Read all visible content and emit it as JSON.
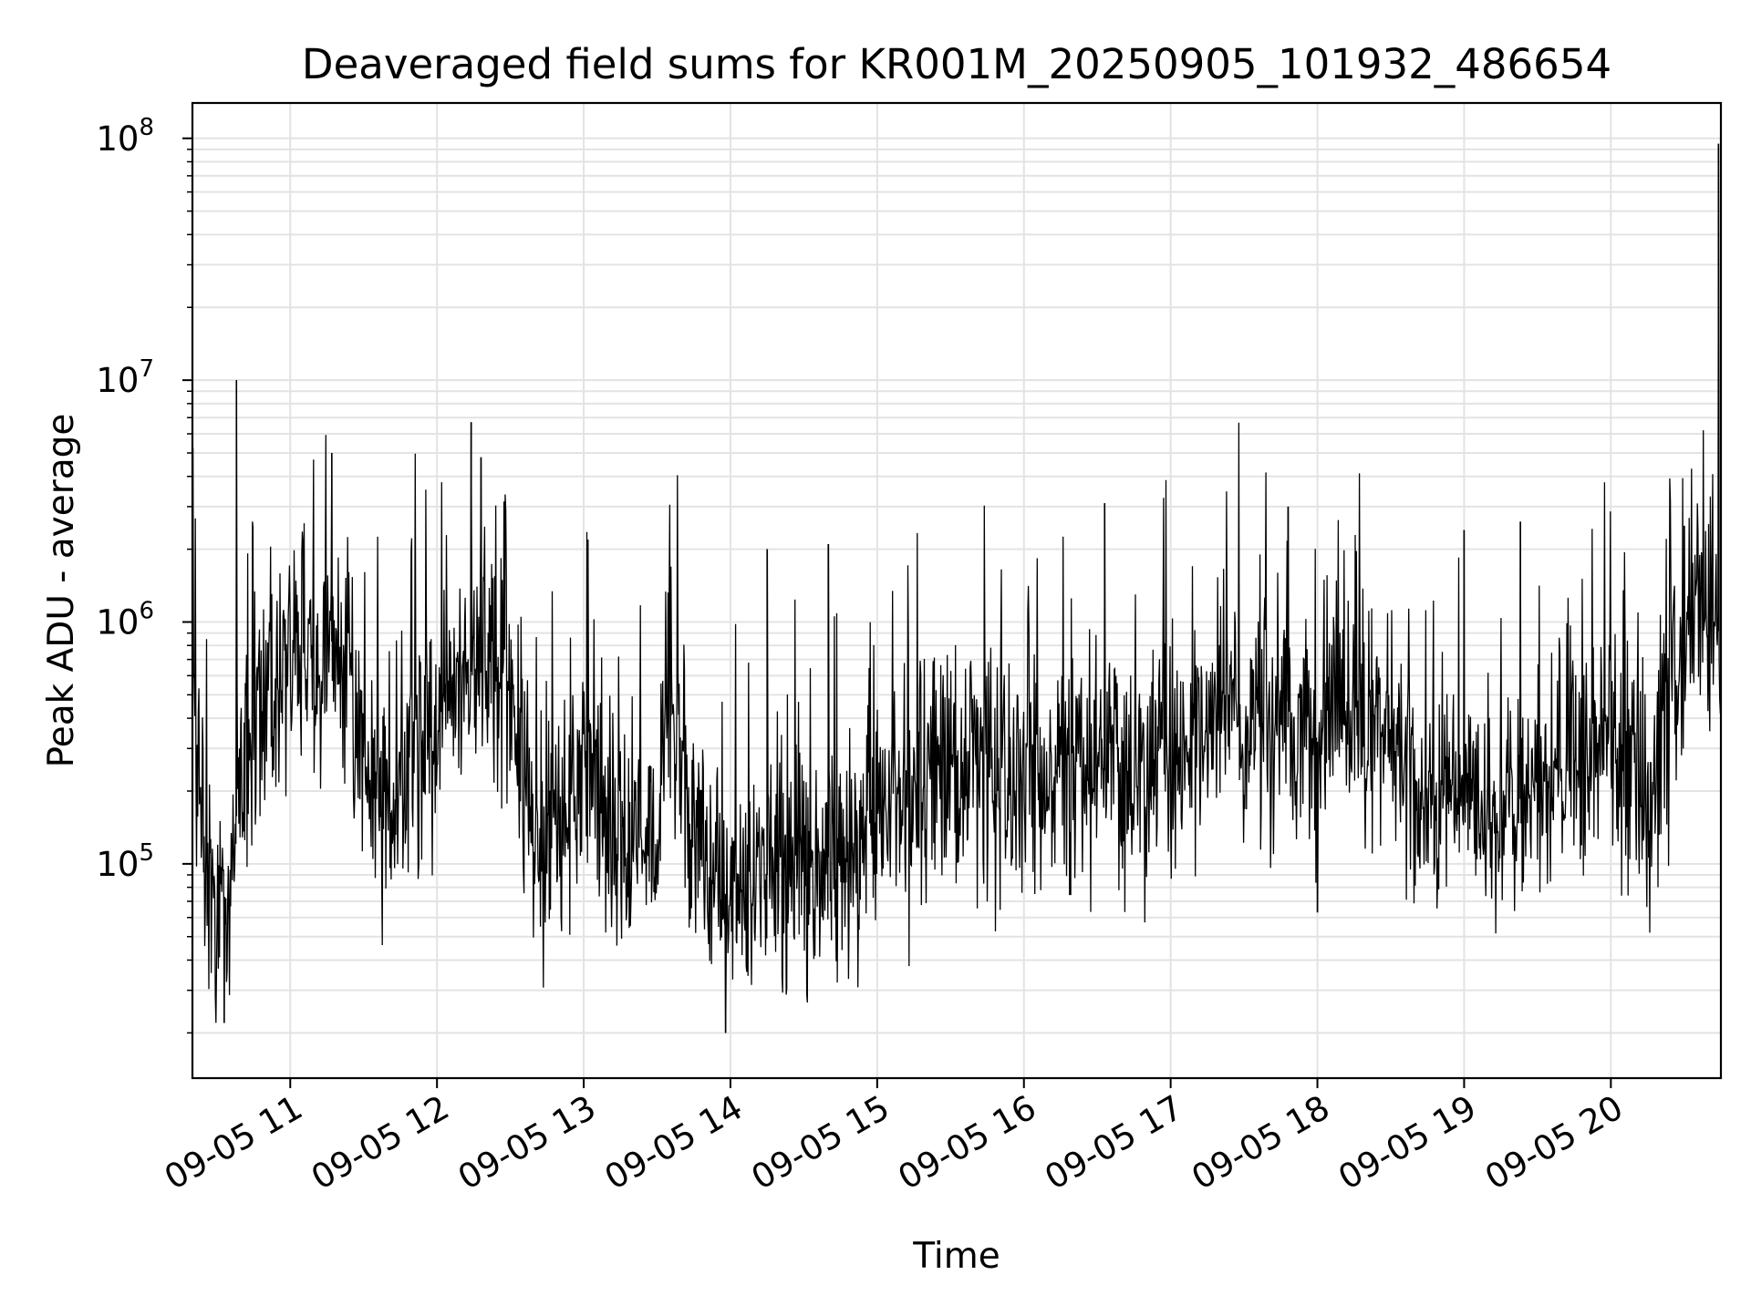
{
  "chart_data": {
    "type": "line",
    "title": "Deaveraged field sums for KR001M_20250905_101932_486654",
    "xlabel": "Time",
    "ylabel": "Peak ADU - average",
    "yscale": "log",
    "ylim": [
      13000,
      140000000
    ],
    "xlim": [
      "2025-09-05 10:20",
      "2025-09-05 20:45"
    ],
    "grid": true,
    "line_color": "#000000",
    "x_ticks": [
      {
        "value": "2025-09-05 11:00",
        "label": "09-05 11"
      },
      {
        "value": "2025-09-05 12:00",
        "label": "09-05 12"
      },
      {
        "value": "2025-09-05 13:00",
        "label": "09-05 13"
      },
      {
        "value": "2025-09-05 14:00",
        "label": "09-05 14"
      },
      {
        "value": "2025-09-05 15:00",
        "label": "09-05 15"
      },
      {
        "value": "2025-09-05 16:00",
        "label": "09-05 16"
      },
      {
        "value": "2025-09-05 17:00",
        "label": "09-05 17"
      },
      {
        "value": "2025-09-05 18:00",
        "label": "09-05 18"
      },
      {
        "value": "2025-09-05 19:00",
        "label": "09-05 19"
      },
      {
        "value": "2025-09-05 20:00",
        "label": "09-05 20"
      }
    ],
    "y_ticks": [
      {
        "value": 100000,
        "base": "10",
        "exp": "5"
      },
      {
        "value": 1000000,
        "base": "10",
        "exp": "6"
      },
      {
        "value": 10000000,
        "base": "10",
        "exp": "7"
      },
      {
        "value": 100000000,
        "base": "10",
        "exp": "8"
      }
    ],
    "series": [
      {
        "trend": [
          [
            "2025-09-05 10:20",
            500000
          ],
          [
            "2025-09-05 10:22",
            350000
          ],
          [
            "2025-09-05 10:25",
            100000
          ],
          [
            "2025-09-05 10:30",
            60000
          ],
          [
            "2025-09-05 10:35",
            60000
          ],
          [
            "2025-09-05 10:40",
            300000
          ],
          [
            "2025-09-05 10:50",
            450000
          ],
          [
            "2025-09-05 11:00",
            600000
          ],
          [
            "2025-09-05 11:15",
            900000
          ],
          [
            "2025-09-05 11:25",
            600000
          ],
          [
            "2025-09-05 11:35",
            170000
          ],
          [
            "2025-09-05 11:45",
            200000
          ],
          [
            "2025-09-05 12:00",
            350000
          ],
          [
            "2025-09-05 12:15",
            650000
          ],
          [
            "2025-09-05 12:30",
            500000
          ],
          [
            "2025-09-05 12:40",
            130000
          ],
          [
            "2025-09-05 12:55",
            170000
          ],
          [
            "2025-09-05 13:05",
            250000
          ],
          [
            "2025-09-05 13:10",
            110000
          ],
          [
            "2025-09-05 13:30",
            110000
          ],
          [
            "2025-09-05 13:35",
            650000
          ],
          [
            "2025-09-05 13:45",
            120000
          ],
          [
            "2025-09-05 14:00",
            70000
          ],
          [
            "2025-09-05 14:15",
            90000
          ],
          [
            "2025-09-05 14:30",
            100000
          ],
          [
            "2025-09-05 14:45",
            110000
          ],
          [
            "2025-09-05 15:00",
            170000
          ],
          [
            "2025-09-05 15:30",
            260000
          ],
          [
            "2025-09-05 16:00",
            240000
          ],
          [
            "2025-09-05 16:30",
            240000
          ],
          [
            "2025-09-05 17:00",
            280000
          ],
          [
            "2025-09-05 17:30",
            420000
          ],
          [
            "2025-09-05 17:45",
            380000
          ],
          [
            "2025-09-05 18:00",
            320000
          ],
          [
            "2025-09-05 18:15",
            420000
          ],
          [
            "2025-09-05 18:30",
            300000
          ],
          [
            "2025-09-05 18:45",
            180000
          ],
          [
            "2025-09-05 19:15",
            170000
          ],
          [
            "2025-09-05 19:30",
            200000
          ],
          [
            "2025-09-05 20:00",
            330000
          ],
          [
            "2025-09-05 20:15",
            170000
          ],
          [
            "2025-09-05 20:25",
            500000
          ],
          [
            "2025-09-05 20:35",
            1400000
          ],
          [
            "2025-09-05 20:43",
            1200000
          ],
          [
            "2025-09-05 20:45",
            700000
          ]
        ],
        "spikes": [
          [
            "2025-09-05 10:38",
            10000000
          ],
          [
            "2025-09-05 10:33",
            22000
          ],
          [
            "2025-09-05 11:17",
            5000000
          ],
          [
            "2025-09-05 12:14",
            6700000
          ],
          [
            "2025-09-05 12:18",
            4800000
          ],
          [
            "2025-09-05 13:58",
            20000
          ],
          [
            "2025-09-05 14:15",
            2000000
          ],
          [
            "2025-09-05 14:40",
            2100000
          ],
          [
            "2025-09-05 16:33",
            3100000
          ],
          [
            "2025-09-05 17:48",
            3000000
          ],
          [
            "2025-09-05 18:00",
            63000
          ],
          [
            "2025-09-05 19:00",
            2400000
          ],
          [
            "2025-09-05 19:23",
            2600000
          ],
          [
            "2025-09-05 20:30",
            2500000
          ],
          [
            "2025-09-05 20:44",
            95000000
          ]
        ]
      }
    ]
  }
}
